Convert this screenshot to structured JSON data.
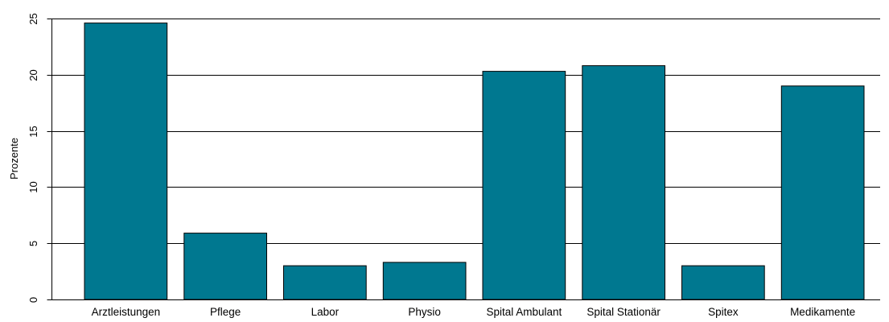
{
  "chart_data": {
    "type": "bar",
    "title": "",
    "xlabel": "",
    "ylabel": "Prozente",
    "ylim": [
      0,
      25
    ],
    "yticks": [
      0,
      5,
      10,
      15,
      20,
      25
    ],
    "ytick_labels": [
      "0",
      "5",
      "10",
      "15",
      "20",
      "25"
    ],
    "grid": "horizontal",
    "categories": [
      "Arztleistungen",
      "Pflege",
      "Labor",
      "Physio",
      "Spital Ambulant",
      "Spital Stationär",
      "Spitex",
      "Medikamente"
    ],
    "values": [
      24.6,
      5.9,
      3.0,
      3.3,
      20.3,
      20.8,
      3.0,
      19.0
    ],
    "bar_color": "#007890",
    "bar_edge_color": "#000000",
    "grid_color": "#000000"
  }
}
